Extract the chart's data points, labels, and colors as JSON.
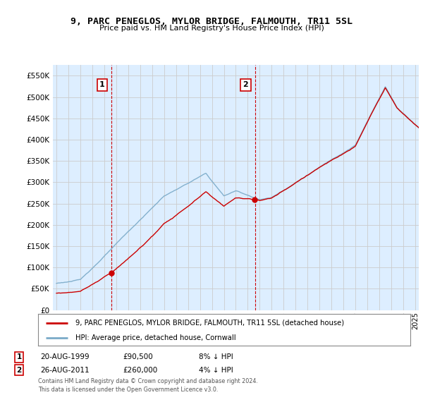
{
  "title": "9, PARC PENEGLOS, MYLOR BRIDGE, FALMOUTH, TR11 5SL",
  "subtitle": "Price paid vs. HM Land Registry's House Price Index (HPI)",
  "legend_label1": "9, PARC PENEGLOS, MYLOR BRIDGE, FALMOUTH, TR11 5SL (detached house)",
  "legend_label2": "HPI: Average price, detached house, Cornwall",
  "transaction1_date": "20-AUG-1999",
  "transaction1_price": "£90,500",
  "transaction1_hpi": "8% ↓ HPI",
  "transaction2_date": "26-AUG-2011",
  "transaction2_price": "£260,000",
  "transaction2_hpi": "4% ↓ HPI",
  "footer": "Contains HM Land Registry data © Crown copyright and database right 2024.\nThis data is licensed under the Open Government Licence v3.0.",
  "ylim": [
    0,
    575000
  ],
  "yticks": [
    0,
    50000,
    100000,
    150000,
    200000,
    250000,
    300000,
    350000,
    400000,
    450000,
    500000,
    550000
  ],
  "color_red": "#cc0000",
  "color_blue": "#aac4e0",
  "color_blue_dark": "#7aaac8",
  "color_grid": "#cccccc",
  "color_bg": "#ddeeff",
  "color_bg_fig": "#ffffff",
  "color_vline": "#cc0000",
  "t1_x": 1999.62,
  "t1_y": 90500,
  "t2_x": 2011.62,
  "t2_y": 260000,
  "xmin": 1994.7,
  "xmax": 2025.3,
  "xtick_start": 1995,
  "xtick_end": 2025
}
